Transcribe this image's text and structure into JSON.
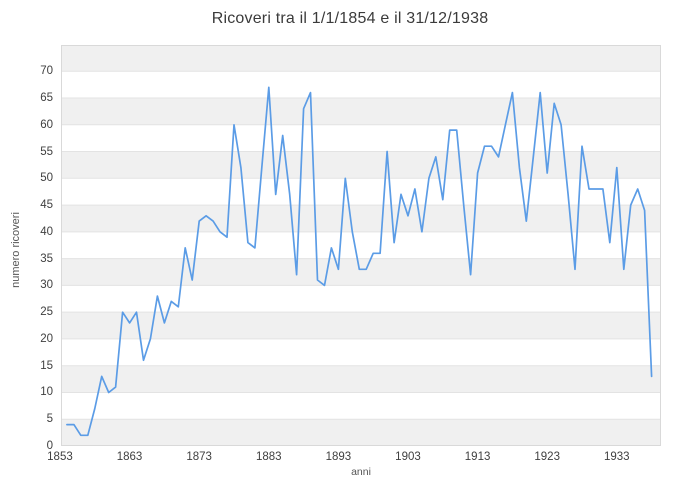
{
  "title": "Ricoveri tra il 1/1/1854 e il 31/12/1938",
  "chart_data": {
    "type": "line",
    "title": "Ricoveri tra il 1/1/1854 e il 31/12/1938",
    "xlabel": "anni",
    "ylabel": "numero ricoveri",
    "legend": "none",
    "grid": "horizontal-bands",
    "x": [
      1854,
      1855,
      1856,
      1857,
      1858,
      1859,
      1860,
      1861,
      1862,
      1863,
      1864,
      1865,
      1866,
      1867,
      1868,
      1869,
      1870,
      1871,
      1872,
      1873,
      1874,
      1875,
      1876,
      1877,
      1878,
      1879,
      1880,
      1881,
      1882,
      1883,
      1884,
      1885,
      1886,
      1887,
      1888,
      1889,
      1890,
      1891,
      1892,
      1893,
      1894,
      1895,
      1896,
      1897,
      1898,
      1899,
      1900,
      1901,
      1902,
      1903,
      1904,
      1905,
      1906,
      1907,
      1908,
      1909,
      1910,
      1911,
      1912,
      1913,
      1914,
      1915,
      1916,
      1917,
      1918,
      1919,
      1920,
      1921,
      1922,
      1923,
      1924,
      1925,
      1926,
      1927,
      1928,
      1929,
      1930,
      1931,
      1932,
      1933,
      1934,
      1935,
      1936,
      1937,
      1938
    ],
    "series": [
      {
        "name": "numero ricoveri",
        "values": [
          4,
          4,
          2,
          2,
          7,
          13,
          10,
          11,
          25,
          23,
          25,
          16,
          20,
          28,
          23,
          27,
          26,
          37,
          31,
          42,
          43,
          42,
          40,
          39,
          60,
          52,
          38,
          37,
          52,
          67,
          47,
          58,
          47,
          32,
          63,
          66,
          31,
          30,
          37,
          33,
          50,
          40,
          33,
          33,
          36,
          36,
          55,
          38,
          47,
          43,
          48,
          40,
          50,
          54,
          46,
          59,
          59,
          45,
          32,
          51,
          56,
          56,
          54,
          60,
          66,
          52,
          42,
          54,
          66,
          51,
          64,
          60,
          47,
          33,
          56,
          48,
          48,
          48,
          38,
          52,
          33,
          45,
          48,
          44,
          13
        ]
      }
    ],
    "x_ticks": [
      1853,
      1863,
      1873,
      1883,
      1893,
      1903,
      1913,
      1923,
      1933
    ],
    "y_ticks": [
      0,
      5,
      10,
      15,
      20,
      25,
      30,
      35,
      40,
      45,
      50,
      55,
      60,
      65,
      70
    ],
    "xlim": [
      1853.15,
      1939.35
    ],
    "ylim": [
      0,
      74.9
    ],
    "line_color": "#5b9ce6",
    "band_color": "#f0f0f0",
    "grid_line_color": "#e3e3e3",
    "plot_border_color": "#d9d9d9",
    "title_color": "#3b3b3b",
    "tick_label_color": "#404040",
    "axis_title_color": "#555555"
  }
}
